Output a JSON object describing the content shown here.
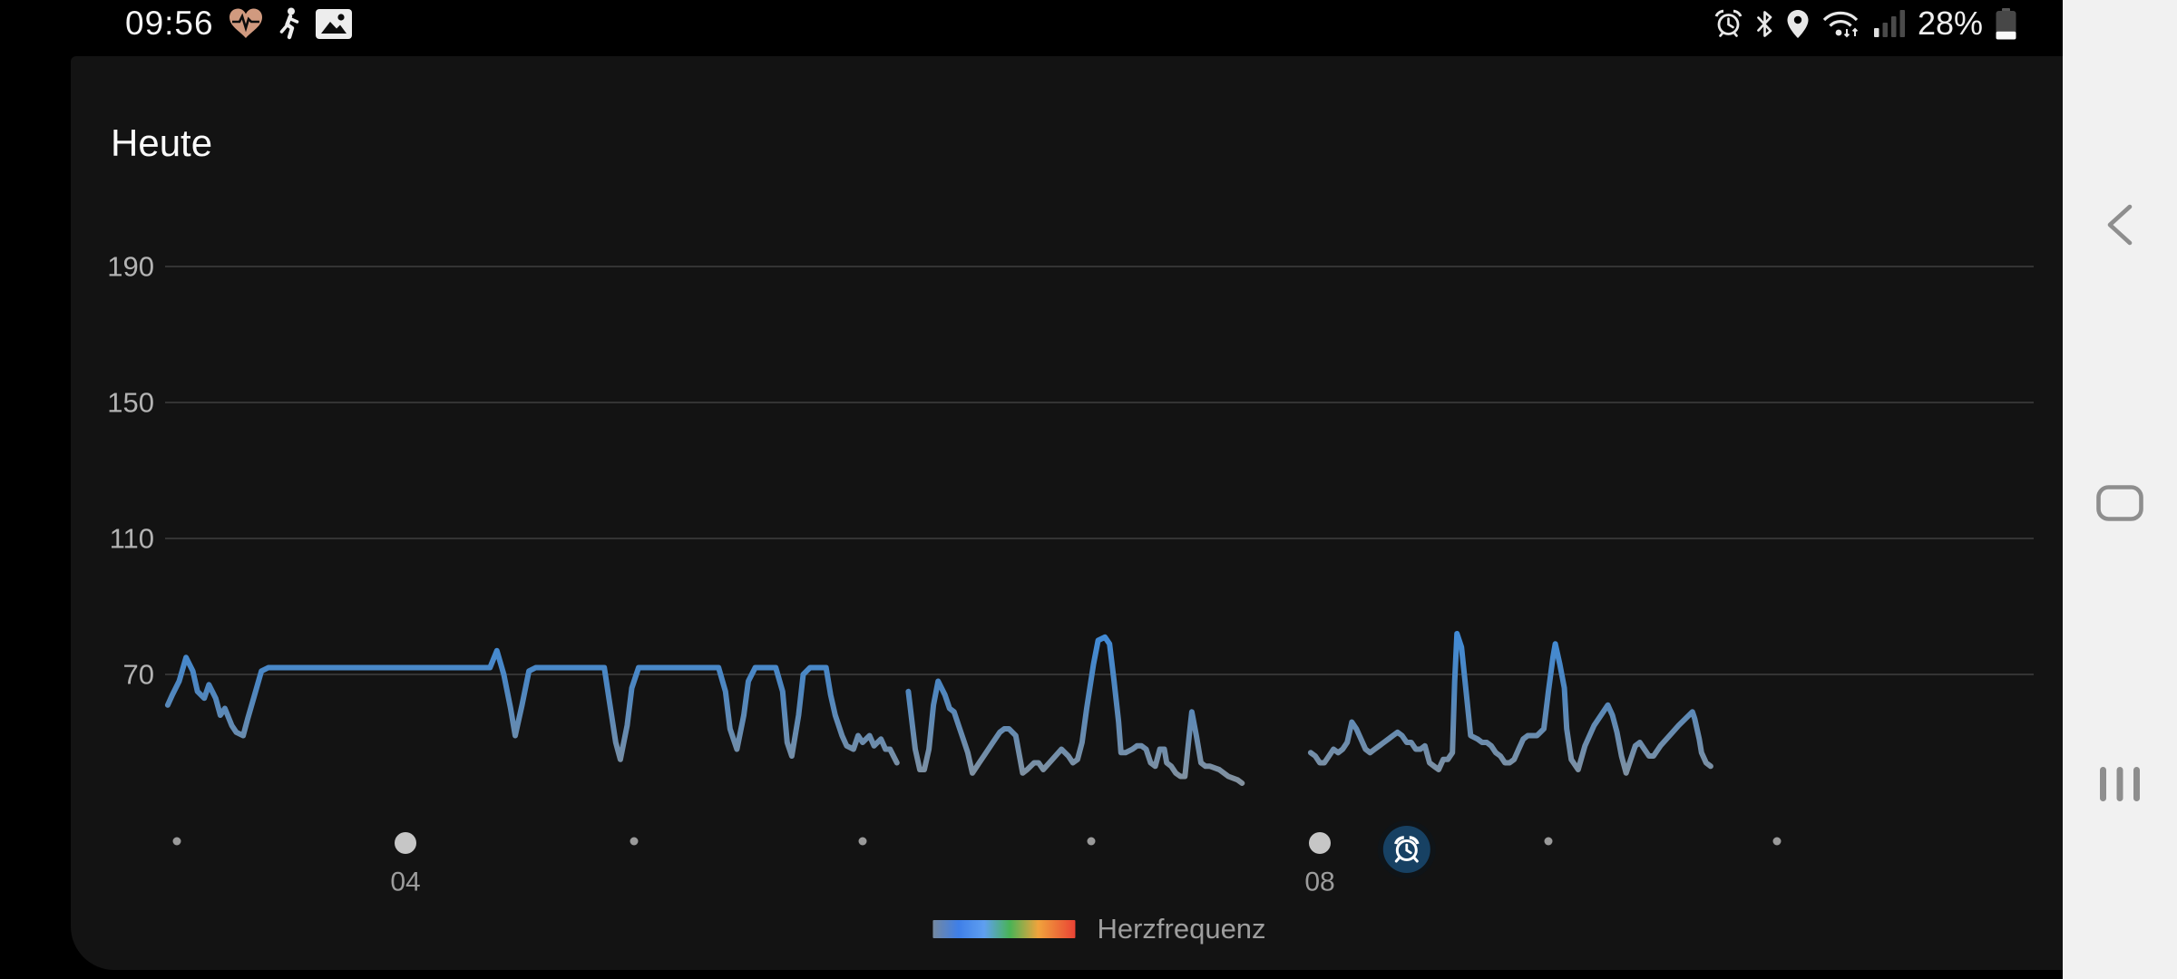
{
  "status_bar": {
    "time": "09:56",
    "battery_label": "28%",
    "battery_level": 28,
    "left_icons": [
      "heart-pulse",
      "runner",
      "gallery"
    ],
    "right_icons": [
      "alarm",
      "bluetooth",
      "location",
      "wifi",
      "signal-1-of-4",
      "battery"
    ]
  },
  "header": {
    "title": "Heute"
  },
  "chart_data": {
    "type": "line",
    "title": "Heute",
    "unit": "bpm",
    "xlabel": "",
    "ylabel": "",
    "ylim": [
      30,
      200
    ],
    "grid": true,
    "y_ticks": [
      190,
      150,
      110,
      70
    ],
    "x_axis": {
      "unit": "hour_of_day",
      "minor_tick_hours": [
        3,
        5,
        6,
        7,
        9,
        10
      ],
      "major_ticks": [
        {
          "hour": 4,
          "label": "04"
        },
        {
          "hour": 8,
          "label": "08"
        }
      ],
      "alarm_marker_hour": 8.38
    },
    "legend": {
      "label": "Herzfrequenz",
      "position": "bottom-center",
      "gradient": [
        "#74889f",
        "#3f7fe8",
        "#5f9ff0",
        "#49b356",
        "#f0a33c",
        "#ea4335"
      ]
    },
    "line_color_top": "#3f8cdb",
    "line_color_bottom": "#87929c",
    "series": [
      {
        "name": "Herzfrequenz",
        "segments": [
          [
            [
              2.96,
              61
            ],
            [
              2.98,
              64
            ],
            [
              3.01,
              68
            ],
            [
              3.04,
              75
            ],
            [
              3.07,
              71
            ],
            [
              3.09,
              65
            ],
            [
              3.12,
              63
            ],
            [
              3.14,
              67
            ],
            [
              3.17,
              63
            ],
            [
              3.19,
              58
            ],
            [
              3.21,
              60
            ],
            [
              3.24,
              55
            ],
            [
              3.26,
              53
            ],
            [
              3.29,
              52
            ],
            [
              3.31,
              57
            ],
            [
              3.34,
              64
            ],
            [
              3.37,
              71
            ],
            [
              3.4,
              72
            ],
            [
              3.62,
              72
            ],
            [
              3.89,
              72
            ],
            [
              4.13,
              72
            ],
            [
              4.37,
              72
            ],
            [
              4.4,
              77
            ],
            [
              4.43,
              70
            ],
            [
              4.46,
              60
            ],
            [
              4.48,
              52
            ],
            [
              4.51,
              61
            ],
            [
              4.54,
              71
            ],
            [
              4.57,
              72
            ],
            [
              4.77,
              72
            ],
            [
              4.87,
              72
            ],
            [
              4.89,
              63
            ],
            [
              4.92,
              50
            ],
            [
              4.94,
              45
            ],
            [
              4.97,
              55
            ],
            [
              4.99,
              66
            ],
            [
              5.02,
              72
            ],
            [
              5.2,
              72
            ],
            [
              5.37,
              72
            ],
            [
              5.4,
              65
            ],
            [
              5.42,
              54
            ],
            [
              5.45,
              48
            ],
            [
              5.48,
              58
            ],
            [
              5.5,
              68
            ],
            [
              5.53,
              72
            ],
            [
              5.62,
              72
            ],
            [
              5.65,
              65
            ],
            [
              5.67,
              50
            ],
            [
              5.69,
              46
            ],
            [
              5.72,
              58
            ],
            [
              5.74,
              70
            ],
            [
              5.77,
              72
            ],
            [
              5.84,
              72
            ],
            [
              5.86,
              64
            ],
            [
              5.88,
              58
            ],
            [
              5.91,
              52
            ],
            [
              5.93,
              49
            ],
            [
              5.96,
              48
            ],
            [
              5.98,
              52
            ],
            [
              6.0,
              50
            ],
            [
              6.03,
              52
            ],
            [
              6.05,
              49
            ],
            [
              6.08,
              51
            ],
            [
              6.1,
              48
            ],
            [
              6.12,
              48
            ],
            [
              6.15,
              44
            ]
          ],
          [
            [
              6.2,
              65
            ],
            [
              6.23,
              48
            ],
            [
              6.25,
              42
            ],
            [
              6.27,
              42
            ],
            [
              6.29,
              48
            ],
            [
              6.31,
              61
            ],
            [
              6.33,
              68
            ],
            [
              6.36,
              64
            ],
            [
              6.38,
              60
            ],
            [
              6.4,
              59
            ],
            [
              6.42,
              55
            ],
            [
              6.44,
              51
            ],
            [
              6.46,
              47
            ],
            [
              6.48,
              41
            ],
            [
              6.51,
              44
            ],
            [
              6.53,
              46
            ],
            [
              6.55,
              48
            ],
            [
              6.57,
              50
            ],
            [
              6.6,
              53
            ],
            [
              6.62,
              54
            ],
            [
              6.64,
              54
            ],
            [
              6.67,
              52
            ],
            [
              6.7,
              41
            ],
            [
              6.72,
              42
            ],
            [
              6.75,
              44
            ],
            [
              6.77,
              44
            ],
            [
              6.79,
              42
            ],
            [
              6.83,
              45
            ],
            [
              6.87,
              48
            ],
            [
              6.9,
              46
            ],
            [
              6.92,
              44
            ],
            [
              6.94,
              45
            ],
            [
              6.96,
              50
            ],
            [
              6.98,
              60
            ],
            [
              7.01,
              73
            ],
            [
              7.03,
              80
            ],
            [
              7.06,
              81
            ],
            [
              7.08,
              79
            ],
            [
              7.1,
              68
            ],
            [
              7.12,
              56
            ],
            [
              7.13,
              47
            ],
            [
              7.15,
              47
            ],
            [
              7.18,
              48
            ],
            [
              7.2,
              49
            ],
            [
              7.22,
              49
            ],
            [
              7.24,
              48
            ],
            [
              7.26,
              44
            ],
            [
              7.28,
              43
            ],
            [
              7.3,
              48
            ],
            [
              7.32,
              48
            ],
            [
              7.33,
              44
            ],
            [
              7.35,
              43
            ],
            [
              7.37,
              41
            ],
            [
              7.39,
              40
            ],
            [
              7.41,
              40
            ],
            [
              7.43,
              53
            ],
            [
              7.44,
              59
            ],
            [
              7.46,
              52
            ],
            [
              7.48,
              44
            ],
            [
              7.5,
              43
            ],
            [
              7.52,
              43
            ],
            [
              7.56,
              42
            ],
            [
              7.6,
              40
            ],
            [
              7.64,
              39
            ],
            [
              7.66,
              38
            ]
          ],
          [
            [
              7.96,
              47
            ],
            [
              7.98,
              46
            ],
            [
              8.0,
              44
            ],
            [
              8.02,
              44
            ],
            [
              8.04,
              46
            ],
            [
              8.06,
              48
            ],
            [
              8.08,
              47
            ],
            [
              8.1,
              48
            ],
            [
              8.12,
              50
            ],
            [
              8.14,
              56
            ],
            [
              8.16,
              54
            ],
            [
              8.18,
              51
            ],
            [
              8.2,
              48
            ],
            [
              8.22,
              47
            ],
            [
              8.24,
              48
            ],
            [
              8.26,
              49
            ],
            [
              8.28,
              50
            ],
            [
              8.3,
              51
            ],
            [
              8.32,
              52
            ],
            [
              8.34,
              53
            ],
            [
              8.36,
              52
            ],
            [
              8.38,
              50
            ],
            [
              8.4,
              50
            ],
            [
              8.42,
              48
            ],
            [
              8.44,
              48
            ],
            [
              8.46,
              49
            ],
            [
              8.48,
              44
            ],
            [
              8.5,
              43
            ],
            [
              8.52,
              42
            ],
            [
              8.54,
              45
            ],
            [
              8.56,
              45
            ],
            [
              8.58,
              47
            ],
            [
              8.59,
              68
            ],
            [
              8.6,
              82
            ],
            [
              8.62,
              78
            ],
            [
              8.64,
              65
            ],
            [
              8.66,
              52
            ],
            [
              8.69,
              51
            ],
            [
              8.71,
              50
            ],
            [
              8.73,
              50
            ],
            [
              8.75,
              49
            ],
            [
              8.77,
              47
            ],
            [
              8.79,
              46
            ],
            [
              8.81,
              44
            ],
            [
              8.83,
              44
            ],
            [
              8.85,
              45
            ],
            [
              8.87,
              48
            ],
            [
              8.89,
              51
            ],
            [
              8.91,
              52
            ],
            [
              8.95,
              52
            ],
            [
              8.98,
              54
            ],
            [
              9.0,
              65
            ],
            [
              9.02,
              75
            ],
            [
              9.03,
              79
            ],
            [
              9.05,
              73
            ],
            [
              9.07,
              66
            ],
            [
              9.08,
              54
            ],
            [
              9.1,
              45
            ],
            [
              9.11,
              44
            ],
            [
              9.13,
              42
            ],
            [
              9.16,
              49
            ],
            [
              9.2,
              55
            ],
            [
              9.24,
              59
            ],
            [
              9.26,
              61
            ],
            [
              9.28,
              58
            ],
            [
              9.3,
              53
            ],
            [
              9.32,
              46
            ],
            [
              9.34,
              41
            ],
            [
              9.36,
              45
            ],
            [
              9.38,
              49
            ],
            [
              9.4,
              50
            ],
            [
              9.42,
              48
            ],
            [
              9.44,
              46
            ],
            [
              9.46,
              46
            ],
            [
              9.49,
              49
            ],
            [
              9.53,
              52
            ],
            [
              9.57,
              55
            ],
            [
              9.6,
              57
            ],
            [
              9.63,
              59
            ],
            [
              9.64,
              57
            ],
            [
              9.66,
              51
            ],
            [
              9.67,
              47
            ],
            [
              9.69,
              44
            ],
            [
              9.71,
              43
            ]
          ]
        ]
      }
    ]
  },
  "navigation_bar": {
    "buttons": [
      "back",
      "home",
      "recents"
    ]
  }
}
